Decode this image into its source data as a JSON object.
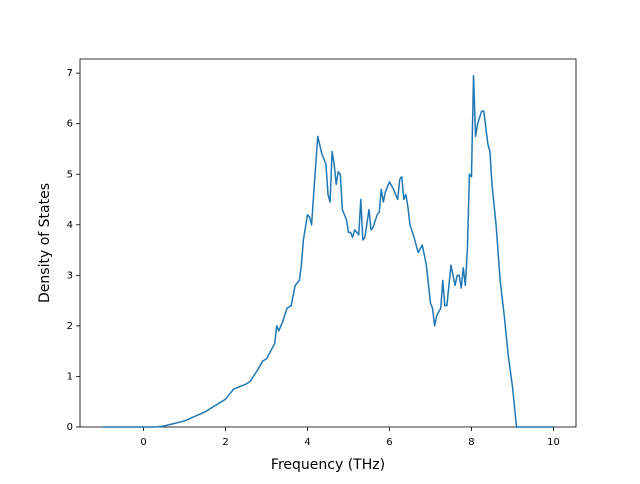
{
  "chart_data": {
    "type": "line",
    "xlabel": "Frequency (THz)",
    "ylabel": "Density of States",
    "xlim": [
      -1.55,
      10.55
    ],
    "ylim": [
      0,
      7.28
    ],
    "xticks": [
      0,
      2,
      4,
      6,
      8,
      10
    ],
    "yticks": [
      0,
      1,
      2,
      3,
      4,
      5,
      6,
      7
    ],
    "grid": false,
    "series": [
      {
        "color": "#1f77b4",
        "x": [
          -1,
          -0.5,
          0,
          0.3,
          0.5,
          1.0,
          1.5,
          2.0,
          2.2,
          2.5,
          2.6,
          2.8,
          2.9,
          3.0,
          3.1,
          3.2,
          3.25,
          3.3,
          3.4,
          3.5,
          3.6,
          3.7,
          3.8,
          3.85,
          3.9,
          4.0,
          4.05,
          4.1,
          4.15,
          4.25,
          4.35,
          4.45,
          4.5,
          4.55,
          4.6,
          4.65,
          4.7,
          4.75,
          4.8,
          4.85,
          4.95,
          5.0,
          5.05,
          5.1,
          5.15,
          5.25,
          5.3,
          5.35,
          5.4,
          5.5,
          5.55,
          5.6,
          5.7,
          5.75,
          5.8,
          5.85,
          5.9,
          6.0,
          6.1,
          6.2,
          6.25,
          6.3,
          6.35,
          6.4,
          6.45,
          6.5,
          6.6,
          6.7,
          6.8,
          6.9,
          7.0,
          7.05,
          7.1,
          7.15,
          7.25,
          7.3,
          7.35,
          7.4,
          7.5,
          7.6,
          7.65,
          7.7,
          7.75,
          7.8,
          7.85,
          7.9,
          7.95,
          8.0,
          8.05,
          8.1,
          8.15,
          8.25,
          8.3,
          8.4,
          8.45,
          8.5,
          8.6,
          8.7,
          8.8,
          8.9,
          9.0,
          9.1,
          9.5,
          10
        ],
        "values": [
          0,
          0,
          0,
          0,
          0.02,
          0.12,
          0.3,
          0.55,
          0.75,
          0.85,
          0.9,
          1.15,
          1.3,
          1.35,
          1.5,
          1.65,
          2.0,
          1.9,
          2.1,
          2.35,
          2.4,
          2.8,
          2.9,
          3.2,
          3.7,
          4.2,
          4.15,
          4.0,
          4.6,
          5.75,
          5.4,
          5.2,
          4.6,
          4.45,
          5.45,
          5.2,
          4.8,
          5.05,
          5.0,
          4.3,
          4.1,
          3.85,
          3.85,
          3.75,
          3.9,
          3.8,
          4.5,
          3.7,
          3.75,
          4.3,
          3.9,
          3.95,
          4.2,
          4.25,
          4.7,
          4.45,
          4.65,
          4.85,
          4.7,
          4.5,
          4.9,
          4.95,
          4.5,
          4.6,
          4.35,
          4.0,
          3.75,
          3.45,
          3.6,
          3.2,
          2.45,
          2.35,
          2.0,
          2.2,
          2.35,
          2.9,
          2.4,
          2.4,
          3.2,
          2.8,
          3.0,
          3.0,
          2.75,
          3.15,
          2.8,
          3.5,
          5.0,
          4.95,
          6.95,
          5.75,
          6.0,
          6.25,
          6.25,
          5.6,
          5.45,
          4.8,
          4.0,
          2.9,
          2.2,
          1.4,
          0.8,
          0.0,
          0,
          0
        ]
      }
    ]
  }
}
